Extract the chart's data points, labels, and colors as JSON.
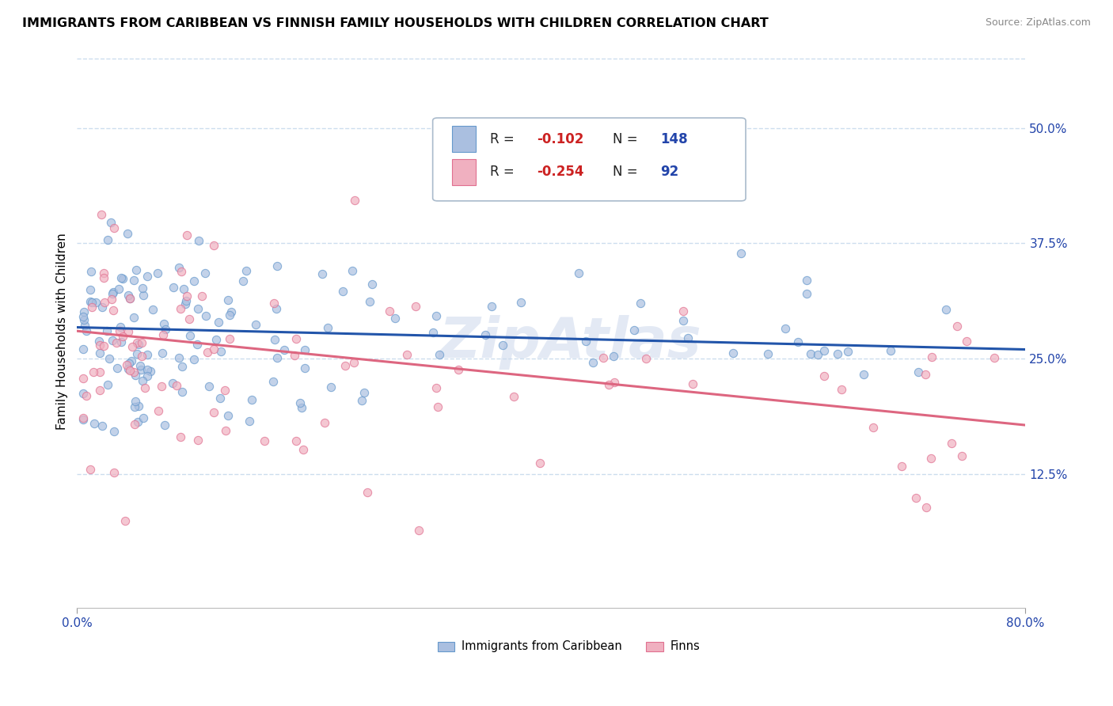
{
  "title": "IMMIGRANTS FROM CARIBBEAN VS FINNISH FAMILY HOUSEHOLDS WITH CHILDREN CORRELATION CHART",
  "source": "Source: ZipAtlas.com",
  "ylabel": "Family Households with Children",
  "watermark": "ZipAtlas",
  "xlim": [
    0.0,
    0.8
  ],
  "ylim": [
    -0.02,
    0.58
  ],
  "yticks": [
    0.125,
    0.25,
    0.375,
    0.5
  ],
  "ytick_labels": [
    "12.5%",
    "25.0%",
    "37.5%",
    "50.0%"
  ],
  "xtick_vals": [
    0.0,
    0.8
  ],
  "xtick_labels": [
    "0.0%",
    "80.0%"
  ],
  "blue_line_x": [
    0.0,
    0.8
  ],
  "blue_line_y": [
    0.284,
    0.26
  ],
  "pink_line_x": [
    0.0,
    0.8
  ],
  "pink_line_y": [
    0.28,
    0.178
  ],
  "blue_color_edge": "#6699cc",
  "blue_color_fill": "#aabfe0",
  "pink_color_edge": "#e07090",
  "pink_color_fill": "#f0b0c0",
  "blue_line_color": "#2255aa",
  "pink_line_color": "#dd6680",
  "background_color": "#ffffff",
  "grid_color": "#ccddee",
  "scatter_alpha": 0.7,
  "scatter_size": 55,
  "legend_R1": "-0.102",
  "legend_N1": "148",
  "legend_R2": "-0.254",
  "legend_N2": "92",
  "legend_text_color": "#2244aa",
  "legend_label1": "Immigrants from Caribbean",
  "legend_label2": "Finns"
}
